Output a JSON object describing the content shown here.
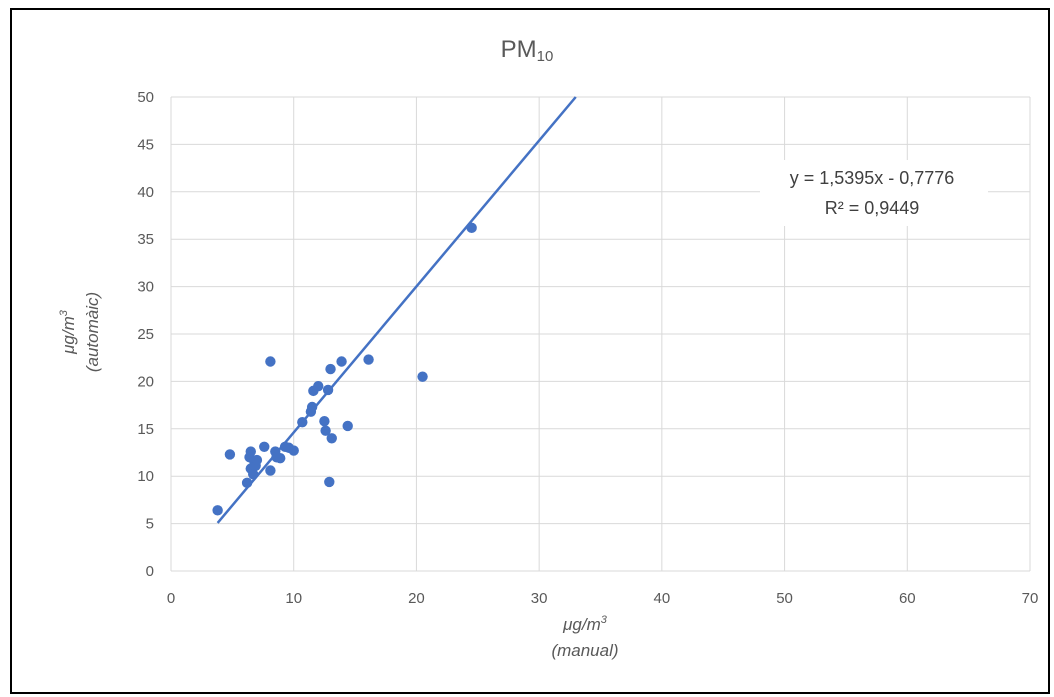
{
  "chart_data": {
    "type": "scatter",
    "title": "PM",
    "title_subscript": "10",
    "xlabel_line1": "μg/m",
    "xlabel_line1_sup": "3",
    "xlabel_line2": "(manual)",
    "ylabel_line1": "μg/m",
    "ylabel_line1_sup": "3",
    "ylabel_line2": "(automàic)",
    "xlim": [
      0,
      70
    ],
    "ylim": [
      0,
      50
    ],
    "xticks": [
      0,
      10,
      20,
      30,
      40,
      50,
      60,
      70
    ],
    "yticks": [
      0,
      5,
      10,
      15,
      20,
      25,
      30,
      35,
      40,
      45,
      50
    ],
    "grid": true,
    "point_color": "#4472C4",
    "series": [
      {
        "points": [
          [
            3.8,
            6.4
          ],
          [
            4.8,
            12.3
          ],
          [
            6.2,
            9.3
          ],
          [
            6.4,
            12.0
          ],
          [
            6.5,
            12.6
          ],
          [
            6.5,
            10.8
          ],
          [
            6.7,
            10.2
          ],
          [
            6.8,
            11.5
          ],
          [
            6.9,
            11.1
          ],
          [
            7.0,
            11.7
          ],
          [
            7.6,
            13.1
          ],
          [
            8.1,
            10.6
          ],
          [
            8.1,
            22.1
          ],
          [
            8.5,
            12.6
          ],
          [
            8.6,
            12.0
          ],
          [
            8.9,
            11.9
          ],
          [
            9.3,
            13.1
          ],
          [
            9.6,
            13.0
          ],
          [
            10.0,
            12.7
          ],
          [
            10.7,
            15.7
          ],
          [
            11.4,
            16.8
          ],
          [
            11.5,
            17.3
          ],
          [
            11.6,
            19.0
          ],
          [
            12.0,
            19.5
          ],
          [
            12.5,
            15.8
          ],
          [
            12.6,
            14.8
          ],
          [
            12.8,
            19.1
          ],
          [
            12.9,
            9.4
          ],
          [
            13.0,
            21.3
          ],
          [
            13.1,
            14.0
          ],
          [
            13.9,
            22.1
          ],
          [
            14.4,
            15.3
          ],
          [
            16.1,
            22.3
          ],
          [
            20.5,
            20.5
          ],
          [
            24.5,
            36.2
          ]
        ]
      }
    ],
    "trendline": {
      "slope": 1.5395,
      "intercept": -0.7776,
      "x_start": 3.8,
      "equation": "y = 1,5395x - 0,7776",
      "r2": "R² = 0,9449"
    }
  }
}
